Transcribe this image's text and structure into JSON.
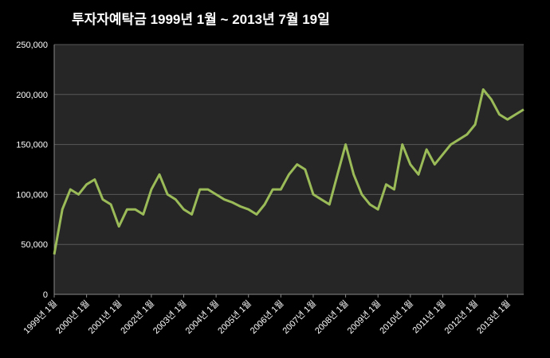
{
  "chart_data": {
    "type": "line",
    "title": "투자자예탁금    1999년 1월 ~ 2013년 7월 19일",
    "categories": [
      "1999년 1월",
      null,
      null,
      null,
      "2000년 1월",
      null,
      null,
      null,
      "2001년 1월",
      null,
      null,
      null,
      "2002년 1월",
      null,
      null,
      null,
      "2003년 1월",
      null,
      null,
      null,
      "2004년 1월",
      null,
      null,
      null,
      "2005년 1월",
      null,
      null,
      null,
      "2006년 1월",
      null,
      null,
      null,
      "2007년 1월",
      null,
      null,
      null,
      "2008년 1월",
      null,
      null,
      null,
      "2009년 1월",
      null,
      null,
      null,
      "2010년 1월",
      null,
      null,
      null,
      "2011년 1월",
      null,
      null,
      null,
      "2012년 1월",
      null,
      null,
      null,
      "2013년 1월",
      null,
      null
    ],
    "values": [
      40000,
      85000,
      105000,
      100000,
      110000,
      115000,
      95000,
      90000,
      68000,
      85000,
      85000,
      80000,
      105000,
      120000,
      100000,
      95000,
      85000,
      80000,
      105000,
      105000,
      100000,
      95000,
      92000,
      88000,
      85000,
      80000,
      90000,
      105000,
      105000,
      120000,
      130000,
      125000,
      100000,
      95000,
      90000,
      120000,
      150000,
      120000,
      100000,
      90000,
      85000,
      110000,
      105000,
      150000,
      130000,
      120000,
      145000,
      130000,
      140000,
      150000,
      155000,
      160000,
      170000,
      205000,
      195000,
      180000,
      175000,
      180000,
      185000
    ],
    "color": "#9bbb59",
    "ylim": [
      0,
      250000
    ],
    "yticks": [
      0,
      {
        "value": 50000,
        "label": "50,000"
      },
      {
        "value": 100000,
        "label": "100,000"
      },
      {
        "value": 150000,
        "label": "150,000"
      },
      {
        "value": 200000,
        "label": "200,000"
      },
      {
        "value": 250000,
        "label": "250,000"
      }
    ],
    "grid": true
  }
}
